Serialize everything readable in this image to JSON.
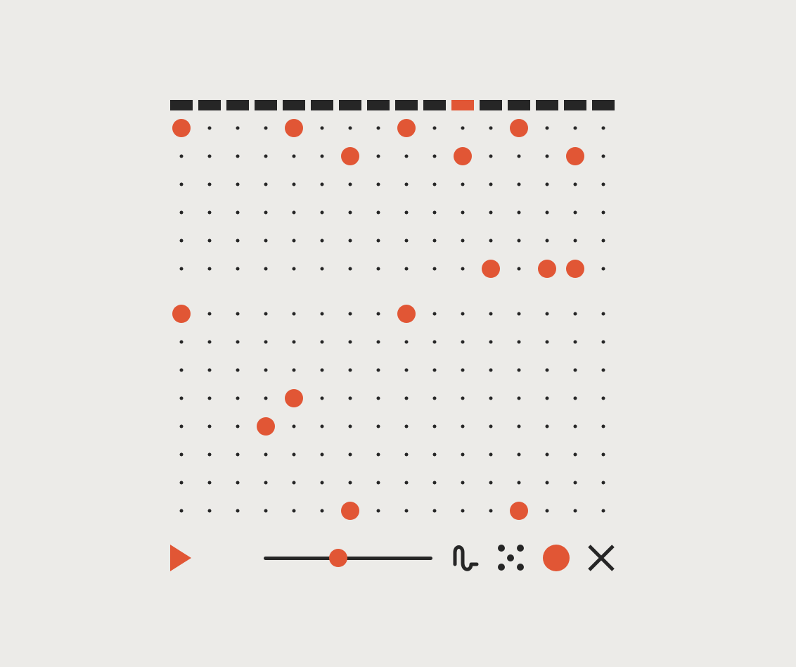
{
  "colors": {
    "background": "#ecebe8",
    "ink": "#262626",
    "accent": "#e15635"
  },
  "sequencer": {
    "steps": 16,
    "current_step": 10,
    "upper_grid_active": [
      [
        0,
        4,
        8,
        12
      ],
      [
        6,
        10,
        14
      ],
      [],
      [],
      [],
      [
        11,
        13,
        14
      ]
    ],
    "lower_grid_active": [
      [
        0,
        8
      ],
      [],
      [],
      [
        4
      ],
      [
        3
      ],
      [],
      [],
      [
        6,
        12
      ]
    ]
  },
  "transport": {
    "play_icon": "play-icon",
    "tempo_level": 0.44
  },
  "tools": [
    {
      "name": "wave-tool-button",
      "icon": "sine-wave-icon"
    },
    {
      "name": "scatter-tool-button",
      "icon": "scatter-dots-icon"
    },
    {
      "name": "record-button",
      "icon": "record-circle-icon"
    },
    {
      "name": "clear-button",
      "icon": "close-icon"
    }
  ]
}
